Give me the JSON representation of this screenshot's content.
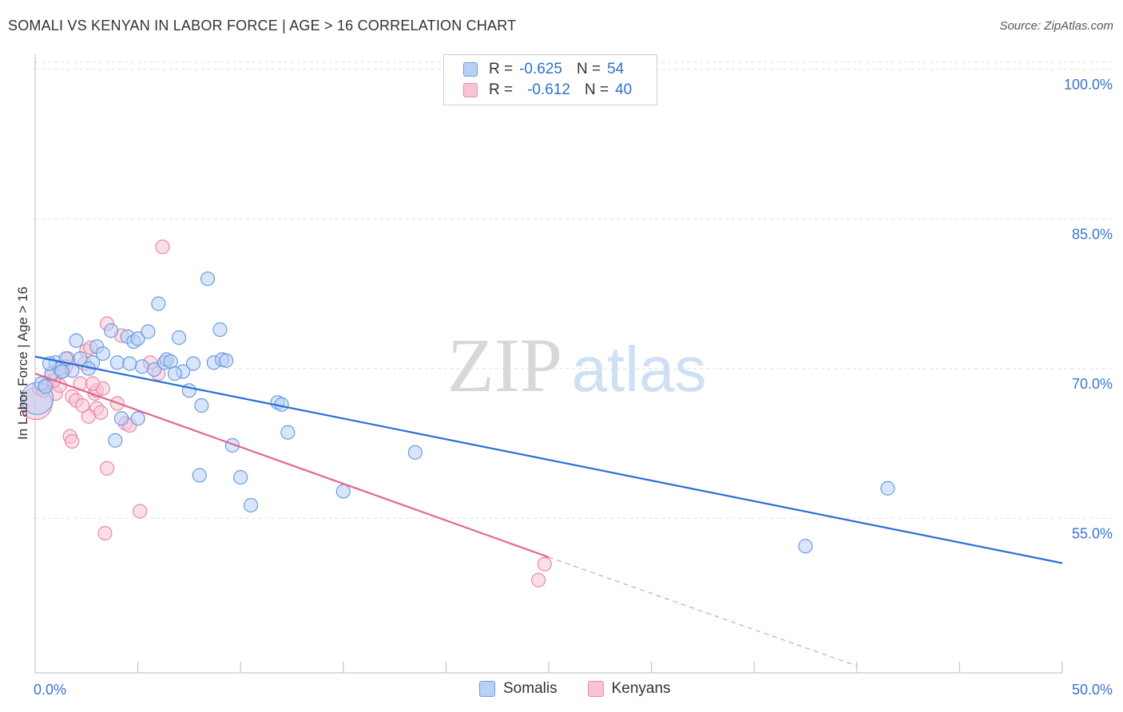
{
  "title": "SOMALI VS KENYAN IN LABOR FORCE | AGE > 16 CORRELATION CHART",
  "source": "Source: ZipAtlas.com",
  "watermark": {
    "zip": "ZIP",
    "atlas": "atlas"
  },
  "colors": {
    "somali_fill": "#b8d0f5",
    "somali_stroke": "#6a9be0",
    "somali_line": "#2a6fd6",
    "kenyan_fill": "#f8c4d4",
    "kenyan_stroke": "#e888a8",
    "kenyan_line": "#e06890",
    "tick_text": "#3a74cc",
    "grid": "#dddddd"
  },
  "legend": {
    "rows": [
      {
        "r_label": "R =",
        "r_value": "-0.625",
        "n_label": "N =",
        "n_value": "54"
      },
      {
        "r_label": "R =",
        "r_value": "-0.612",
        "n_label": "N =",
        "n_value": "40"
      }
    ]
  },
  "bottom_legend": {
    "somali": "Somalis",
    "kenyan": "Kenyans"
  },
  "chart_data": {
    "type": "scatter",
    "title": "SOMALI VS KENYAN IN LABOR FORCE | AGE > 16 CORRELATION CHART",
    "xlabel": "",
    "ylabel": "In Labor Force | Age > 16",
    "xlim": [
      0,
      50
    ],
    "ylim": [
      39.5,
      101.5
    ],
    "x_tick_labels": [
      {
        "value": 0,
        "label": "0.0%"
      },
      {
        "value": 50,
        "label": "50.0%"
      }
    ],
    "y_tick_labels": [
      {
        "value": 100,
        "label": "100.0%"
      },
      {
        "value": 85,
        "label": "85.0%"
      },
      {
        "value": 70,
        "label": "70.0%"
      },
      {
        "value": 55,
        "label": "55.0%"
      }
    ],
    "x_minor_ticks": [
      0,
      5,
      10,
      15,
      20,
      25,
      30,
      35,
      40,
      45,
      50
    ],
    "series": [
      {
        "name": "Somalis",
        "r": -0.625,
        "n": 54,
        "trend": {
          "x": [
            0,
            50
          ],
          "y": [
            71.2,
            50.5
          ],
          "dashed_from": null
        },
        "points": [
          [
            0.1,
            67
          ],
          [
            0.3,
            68.5
          ],
          [
            0.5,
            68.2
          ],
          [
            0.8,
            69.5
          ],
          [
            1.0,
            70.6
          ],
          [
            1.2,
            70.0
          ],
          [
            1.5,
            71.0
          ],
          [
            1.8,
            69.8
          ],
          [
            2.0,
            72.8
          ],
          [
            2.2,
            71.0
          ],
          [
            2.8,
            70.6
          ],
          [
            3.0,
            72.2
          ],
          [
            3.3,
            71.5
          ],
          [
            3.7,
            73.8
          ],
          [
            4.0,
            70.6
          ],
          [
            4.2,
            65.0
          ],
          [
            4.5,
            73.2
          ],
          [
            4.8,
            72.7
          ],
          [
            5.0,
            73.0
          ],
          [
            5.2,
            70.2
          ],
          [
            5.5,
            73.7
          ],
          [
            5.8,
            69.9
          ],
          [
            6.0,
            76.5
          ],
          [
            6.3,
            70.6
          ],
          [
            6.4,
            70.9
          ],
          [
            6.6,
            70.7
          ],
          [
            7.0,
            73.1
          ],
          [
            7.2,
            69.7
          ],
          [
            7.5,
            67.8
          ],
          [
            7.7,
            70.5
          ],
          [
            8.0,
            59.3
          ],
          [
            8.1,
            66.3
          ],
          [
            8.4,
            79.0
          ],
          [
            8.7,
            70.6
          ],
          [
            9.0,
            73.9
          ],
          [
            9.1,
            70.9
          ],
          [
            9.6,
            62.3
          ],
          [
            10.0,
            59.1
          ],
          [
            10.5,
            56.3
          ],
          [
            11.8,
            66.6
          ],
          [
            12.0,
            66.4
          ],
          [
            12.3,
            63.6
          ],
          [
            15.0,
            57.7
          ],
          [
            18.5,
            61.6
          ],
          [
            37.5,
            52.2
          ],
          [
            41.5,
            58.0
          ],
          [
            3.9,
            62.8
          ],
          [
            5.0,
            65.0
          ],
          [
            2.6,
            70.0
          ],
          [
            1.3,
            69.7
          ],
          [
            0.7,
            70.5
          ],
          [
            4.6,
            70.5
          ],
          [
            6.8,
            69.5
          ],
          [
            9.3,
            70.8
          ]
        ]
      },
      {
        "name": "Kenyans",
        "r": -0.612,
        "n": 40,
        "trend": {
          "x": [
            0,
            25
          ],
          "y": [
            69.5,
            51.1
          ],
          "dashed_to": [
            40,
            40.2
          ]
        },
        "points": [
          [
            0.05,
            66.5
          ],
          [
            0.2,
            68.0
          ],
          [
            0.4,
            67.8
          ],
          [
            0.6,
            68.5
          ],
          [
            0.8,
            69.3
          ],
          [
            1.0,
            67.5
          ],
          [
            1.2,
            68.3
          ],
          [
            1.4,
            69.8
          ],
          [
            1.6,
            71.0
          ],
          [
            1.8,
            67.2
          ],
          [
            2.0,
            66.8
          ],
          [
            2.2,
            68.5
          ],
          [
            2.4,
            70.5
          ],
          [
            2.5,
            71.8
          ],
          [
            2.7,
            72.1
          ],
          [
            2.9,
            67.5
          ],
          [
            3.0,
            66.0
          ],
          [
            3.2,
            65.6
          ],
          [
            3.5,
            60.0
          ],
          [
            3.5,
            74.5
          ],
          [
            4.0,
            66.5
          ],
          [
            4.2,
            73.3
          ],
          [
            4.4,
            64.5
          ],
          [
            4.6,
            64.3
          ],
          [
            5.1,
            55.7
          ],
          [
            5.6,
            70.6
          ],
          [
            6.0,
            69.5
          ],
          [
            6.2,
            82.2
          ],
          [
            3.0,
            67.8
          ],
          [
            3.3,
            68.0
          ],
          [
            2.8,
            68.5
          ],
          [
            1.7,
            63.2
          ],
          [
            1.8,
            62.7
          ],
          [
            2.6,
            65.2
          ],
          [
            3.4,
            53.5
          ],
          [
            24.5,
            48.8
          ],
          [
            24.8,
            50.4
          ],
          [
            0.9,
            68.8
          ],
          [
            1.5,
            70.2
          ],
          [
            2.3,
            66.3
          ]
        ]
      }
    ]
  }
}
